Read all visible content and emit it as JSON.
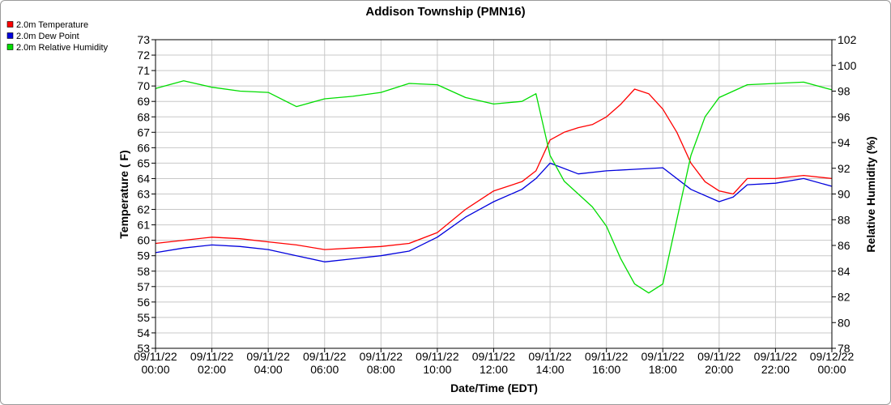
{
  "chart_data": {
    "type": "line",
    "title": "Addison Township (PMN16)",
    "xlabel": "Date/Time (EDT)",
    "ylabel": "Temperature ( F)",
    "y2label": "Relative Humidity (%)",
    "xlim": [
      "09/11/22 00:00",
      "09/12/22 00:00"
    ],
    "ylim": [
      53,
      73
    ],
    "y2lim": [
      78,
      102
    ],
    "grid": true,
    "legend_position": "top-left",
    "x_ticks": [
      {
        "date": "09/11/22",
        "time": "00:00"
      },
      {
        "date": "09/11/22",
        "time": "02:00"
      },
      {
        "date": "09/11/22",
        "time": "04:00"
      },
      {
        "date": "09/11/22",
        "time": "06:00"
      },
      {
        "date": "09/11/22",
        "time": "08:00"
      },
      {
        "date": "09/11/22",
        "time": "10:00"
      },
      {
        "date": "09/11/22",
        "time": "12:00"
      },
      {
        "date": "09/11/22",
        "time": "14:00"
      },
      {
        "date": "09/11/22",
        "time": "16:00"
      },
      {
        "date": "09/11/22",
        "time": "18:00"
      },
      {
        "date": "09/11/22",
        "time": "20:00"
      },
      {
        "date": "09/11/22",
        "time": "22:00"
      },
      {
        "date": "09/12/22",
        "time": "00:00"
      }
    ],
    "y_ticks": [
      "53",
      "54",
      "55",
      "56",
      "57",
      "58",
      "59",
      "60",
      "61",
      "62",
      "63",
      "64",
      "65",
      "66",
      "67",
      "68",
      "69",
      "70",
      "71",
      "72",
      "73"
    ],
    "y2_ticks": [
      "78",
      "80",
      "82",
      "84",
      "86",
      "88",
      "90",
      "92",
      "94",
      "96",
      "98",
      "100",
      "102"
    ],
    "series": [
      {
        "name": "2.0m Temperature",
        "axis": "left",
        "color": "#ff0000",
        "x": [
          "09/11/22 00:00",
          "09/11/22 01:00",
          "09/11/22 02:00",
          "09/11/22 03:00",
          "09/11/22 04:00",
          "09/11/22 05:00",
          "09/11/22 06:00",
          "09/11/22 07:00",
          "09/11/22 08:00",
          "09/11/22 09:00",
          "09/11/22 10:00",
          "09/11/22 11:00",
          "09/11/22 12:00",
          "09/11/22 13:00",
          "09/11/22 13:30",
          "09/11/22 14:00",
          "09/11/22 14:30",
          "09/11/22 15:00",
          "09/11/22 15:30",
          "09/11/22 16:00",
          "09/11/22 16:30",
          "09/11/22 17:00",
          "09/11/22 17:30",
          "09/11/22 18:00",
          "09/11/22 18:30",
          "09/11/22 19:00",
          "09/11/22 19:30",
          "09/11/22 20:00",
          "09/11/22 20:30",
          "09/11/22 21:00",
          "09/11/22 22:00",
          "09/11/22 23:00",
          "09/12/22 00:00"
        ],
        "values": [
          59.8,
          60.0,
          60.2,
          60.1,
          59.9,
          59.7,
          59.4,
          59.5,
          59.6,
          59.8,
          60.5,
          62.0,
          63.2,
          63.8,
          64.5,
          66.5,
          67.0,
          67.3,
          67.5,
          68.0,
          68.8,
          69.8,
          69.5,
          68.5,
          67.0,
          65.0,
          63.8,
          63.2,
          63.0,
          64.0,
          64.0,
          64.2,
          64.0
        ]
      },
      {
        "name": "2.0m Dew Point",
        "axis": "left",
        "color": "#0000dd",
        "x": [
          "09/11/22 00:00",
          "09/11/22 01:00",
          "09/11/22 02:00",
          "09/11/22 03:00",
          "09/11/22 04:00",
          "09/11/22 05:00",
          "09/11/22 06:00",
          "09/11/22 07:00",
          "09/11/22 08:00",
          "09/11/22 09:00",
          "09/11/22 10:00",
          "09/11/22 11:00",
          "09/11/22 12:00",
          "09/11/22 13:00",
          "09/11/22 13:30",
          "09/11/22 14:00",
          "09/11/22 15:00",
          "09/11/22 16:00",
          "09/11/22 17:00",
          "09/11/22 18:00",
          "09/11/22 19:00",
          "09/11/22 20:00",
          "09/11/22 20:30",
          "09/11/22 21:00",
          "09/11/22 22:00",
          "09/11/22 23:00",
          "09/12/22 00:00"
        ],
        "values": [
          59.2,
          59.5,
          59.7,
          59.6,
          59.4,
          59.0,
          58.6,
          58.8,
          59.0,
          59.3,
          60.2,
          61.5,
          62.5,
          63.3,
          64.0,
          65.0,
          64.3,
          64.5,
          64.6,
          64.7,
          63.3,
          62.5,
          62.8,
          63.6,
          63.7,
          64.0,
          63.5
        ]
      },
      {
        "name": "2.0m Relative Humidity",
        "axis": "right",
        "color": "#00dd00",
        "x": [
          "09/11/22 00:00",
          "09/11/22 01:00",
          "09/11/22 02:00",
          "09/11/22 03:00",
          "09/11/22 04:00",
          "09/11/22 05:00",
          "09/11/22 06:00",
          "09/11/22 07:00",
          "09/11/22 08:00",
          "09/11/22 09:00",
          "09/11/22 10:00",
          "09/11/22 11:00",
          "09/11/22 12:00",
          "09/11/22 13:00",
          "09/11/22 13:30",
          "09/11/22 14:00",
          "09/11/22 14:30",
          "09/11/22 15:00",
          "09/11/22 15:30",
          "09/11/22 16:00",
          "09/11/22 16:30",
          "09/11/22 17:00",
          "09/11/22 17:30",
          "09/11/22 18:00",
          "09/11/22 18:30",
          "09/11/22 19:00",
          "09/11/22 19:30",
          "09/11/22 20:00",
          "09/11/22 21:00",
          "09/11/22 22:00",
          "09/11/22 23:00",
          "09/12/22 00:00"
        ],
        "values": [
          98.2,
          98.8,
          98.3,
          98.0,
          97.9,
          96.8,
          97.4,
          97.6,
          97.9,
          98.6,
          98.5,
          97.5,
          97.0,
          97.2,
          97.8,
          93.0,
          91.0,
          90.0,
          89.0,
          87.5,
          85.0,
          83.0,
          82.3,
          83.0,
          88.0,
          93.0,
          96.0,
          97.5,
          98.5,
          98.6,
          98.7,
          98.1
        ]
      }
    ]
  }
}
